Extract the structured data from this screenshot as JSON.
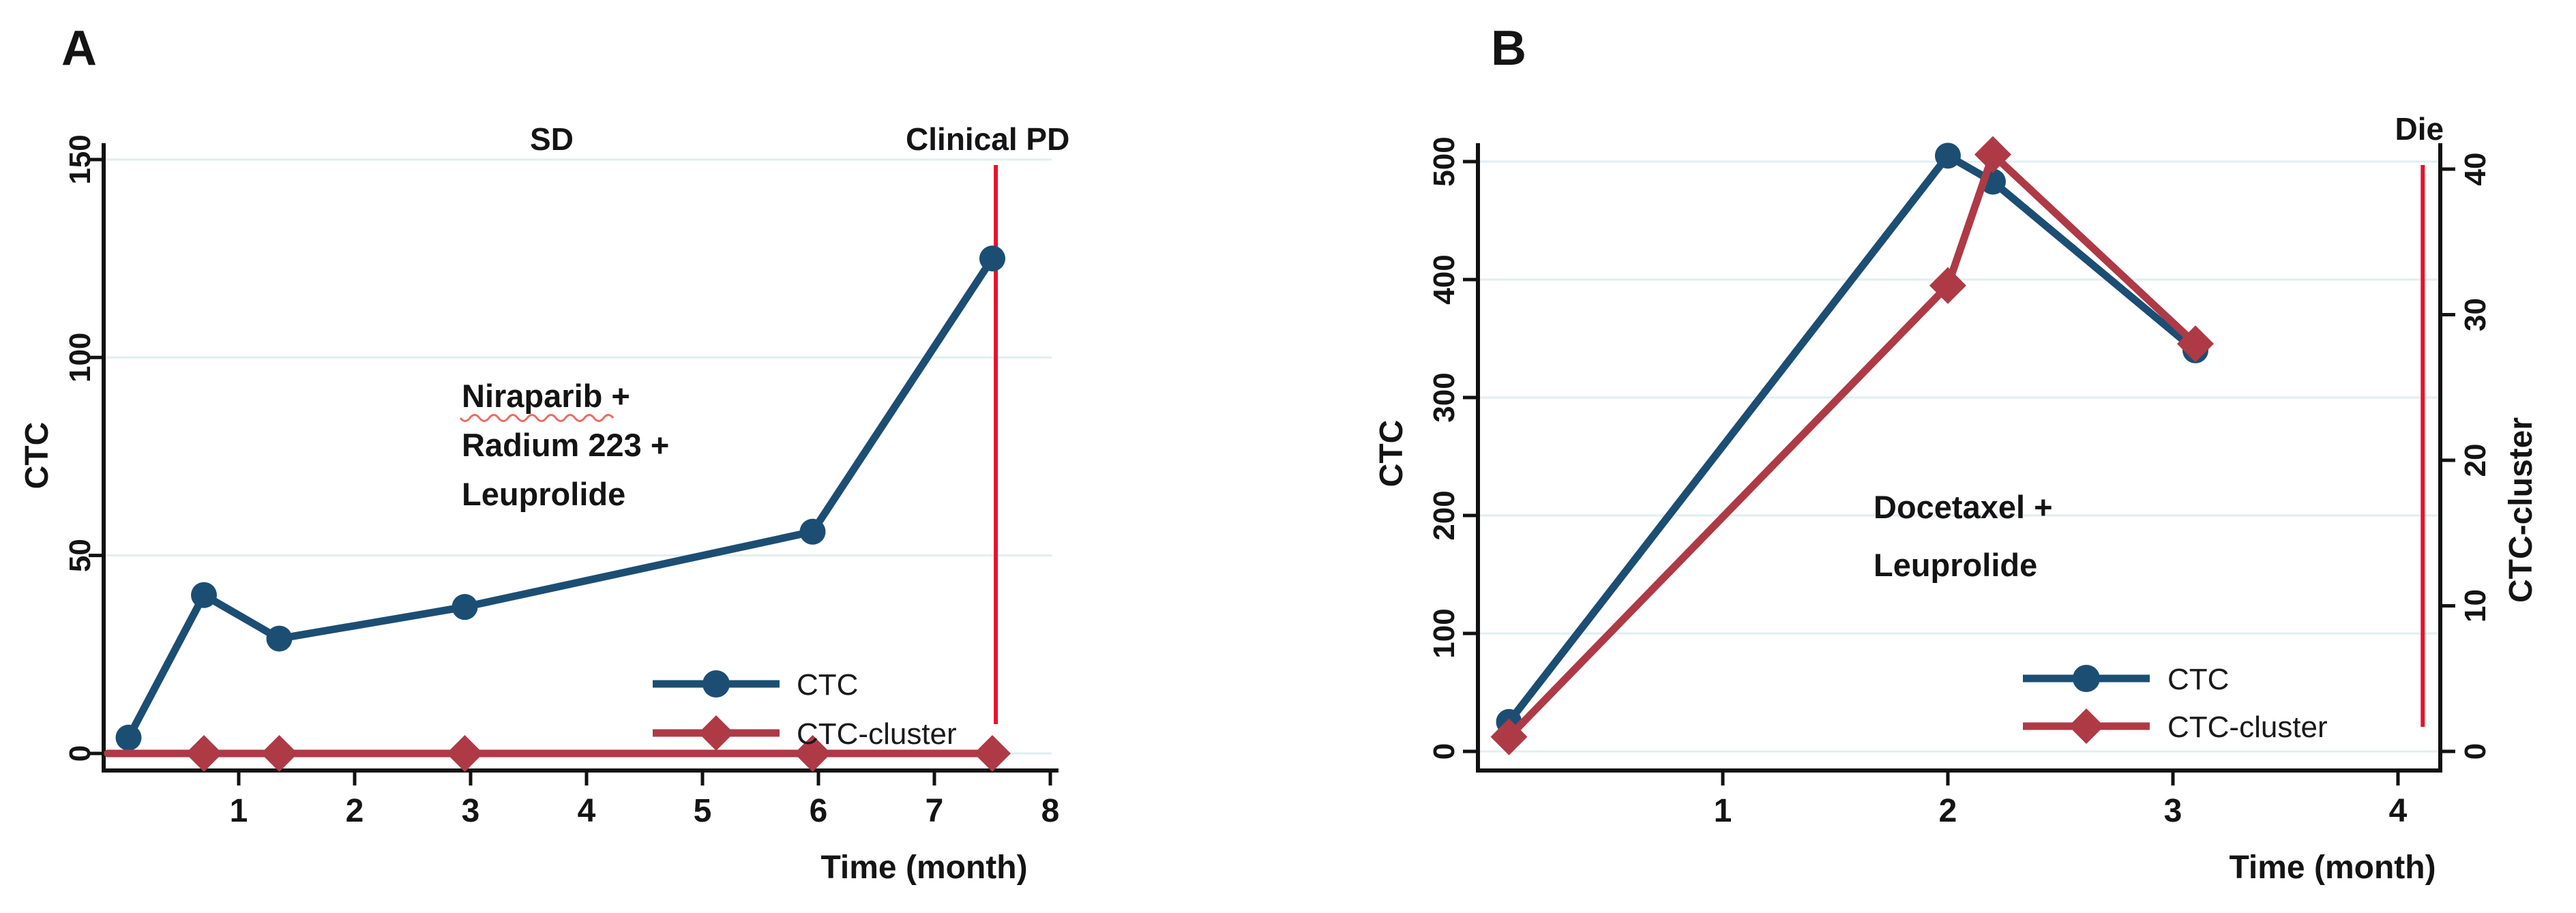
{
  "colors": {
    "ctc_blue": "#1C4E74",
    "cluster_red": "#AE3A46",
    "event_red": "#E8112D",
    "gridline": "#E2EEF1",
    "axis": "#111111",
    "spellcheck_red": "#ED6A60"
  },
  "chart_data": [
    {
      "id": "A",
      "type": "line",
      "panel_label": "A",
      "xlabel": "Time (month)",
      "ylabel": "CTC",
      "x_ticks": [
        1,
        2,
        3,
        4,
        5,
        6,
        7,
        8
      ],
      "y_ticks": [
        0,
        50,
        100,
        150
      ],
      "xlim": [
        -0.15,
        8.07
      ],
      "ylim": [
        0,
        155
      ],
      "grid": true,
      "legend_position": "inside-lower-right",
      "status_labels": [
        {
          "text": "SD",
          "x": 3.7
        },
        {
          "text": "Clinical PD",
          "x": 7.46
        }
      ],
      "event_line": {
        "x": 7.53,
        "color": "#E8112D"
      },
      "treatment_annotation": {
        "lines": [
          "Niraparib +",
          "Radium 223 +",
          "Leuprolide"
        ],
        "spellcheck_underlined_word": "Niraparib"
      },
      "series": [
        {
          "name": "CTC",
          "axis": "left",
          "color": "#1C4E74",
          "marker": "circle",
          "x": [
            0.05,
            0.7,
            1.35,
            2.95,
            5.95,
            7.5
          ],
          "y": [
            4,
            40,
            29,
            37,
            56,
            125
          ]
        },
        {
          "name": "CTC-cluster",
          "axis": "left",
          "color": "#AE3A46",
          "marker": "diamond",
          "x": [
            0.05,
            0.7,
            1.35,
            2.95,
            5.95,
            7.5
          ],
          "y": [
            0,
            0,
            0,
            0,
            0,
            0
          ],
          "line_start_x": -0.13,
          "skip_first_marker": true
        }
      ]
    },
    {
      "id": "B",
      "type": "line",
      "panel_label": "B",
      "xlabel": "Time (month)",
      "ylabel": "CTC",
      "ylabel_right": "CTC-cluster",
      "x_ticks": [
        1,
        2,
        3,
        4
      ],
      "y_ticks": [
        0,
        100,
        200,
        300,
        400,
        500
      ],
      "y_ticks_right": [
        0,
        10,
        20,
        30,
        40
      ],
      "xlim": [
        -0.12,
        4.2
      ],
      "ylim": [
        0,
        518
      ],
      "ylim_right": [
        0,
        41.5
      ],
      "grid": true,
      "legend_position": "inside-lower-right",
      "status_labels": [],
      "event_line": {
        "x": 4.11,
        "label": "Die",
        "color": "#E8112D"
      },
      "treatment_annotation": {
        "lines": [
          "Docetaxel +",
          "Leuprolide"
        ]
      },
      "series": [
        {
          "name": "CTC",
          "axis": "left",
          "color": "#1C4E74",
          "marker": "circle",
          "x": [
            0.05,
            2.0,
            2.2,
            3.1
          ],
          "y": [
            25,
            505,
            483,
            340
          ]
        },
        {
          "name": "CTC-cluster",
          "axis": "right",
          "color": "#AE3A46",
          "marker": "diamond",
          "x": [
            0.05,
            2.0,
            2.2,
            3.1
          ],
          "y": [
            1,
            32,
            41,
            28
          ]
        }
      ]
    }
  ]
}
